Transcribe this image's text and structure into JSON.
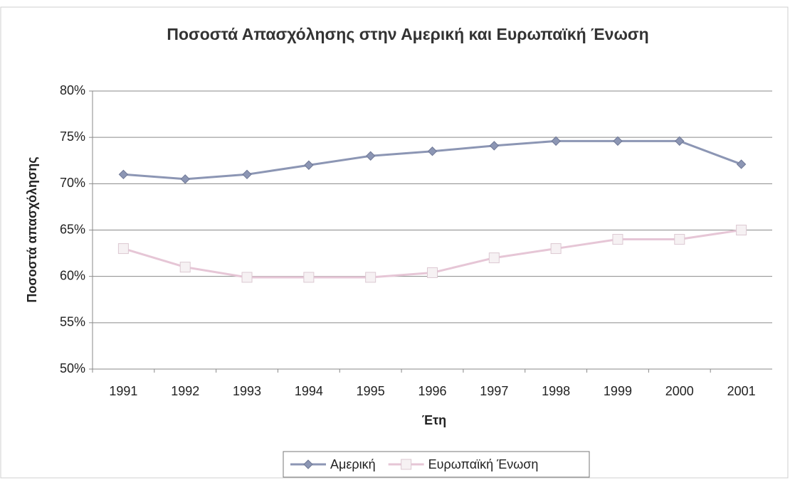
{
  "chart_data": {
    "type": "line",
    "title": "Ποσοστά Απασχόλησης στην Αμερική και Ευρωπαϊκή Ένωση",
    "x_label": "Έτη",
    "y_label": "Ποσοστά απασχόλησης",
    "categories": [
      "1991",
      "1992",
      "1993",
      "1994",
      "1995",
      "1996",
      "1997",
      "1998",
      "1999",
      "2000",
      "2001"
    ],
    "series": [
      {
        "name": "Αμερική",
        "color": "#8c96b4",
        "marker": "diamond",
        "values": [
          71,
          70.5,
          71,
          72,
          73,
          73.5,
          74.1,
          74.6,
          74.6,
          74.6,
          72.1
        ]
      },
      {
        "name": "Ευρωπαϊκή Ένωση",
        "color": "#e6c6d6",
        "marker": "square",
        "values": [
          63,
          61,
          59.9,
          59.9,
          59.9,
          60.4,
          62,
          63,
          64,
          64,
          65
        ]
      }
    ],
    "ylim": [
      50,
      80
    ],
    "yticks": [
      {
        "value": 50,
        "label": "50%"
      },
      {
        "value": 55,
        "label": "55%"
      },
      {
        "value": 60,
        "label": "60%"
      },
      {
        "value": 65,
        "label": "65%"
      },
      {
        "value": 70,
        "label": "70%"
      },
      {
        "value": 75,
        "label": "75%"
      },
      {
        "value": 80,
        "label": "80%"
      }
    ],
    "grid": true,
    "legend": "bottom"
  }
}
